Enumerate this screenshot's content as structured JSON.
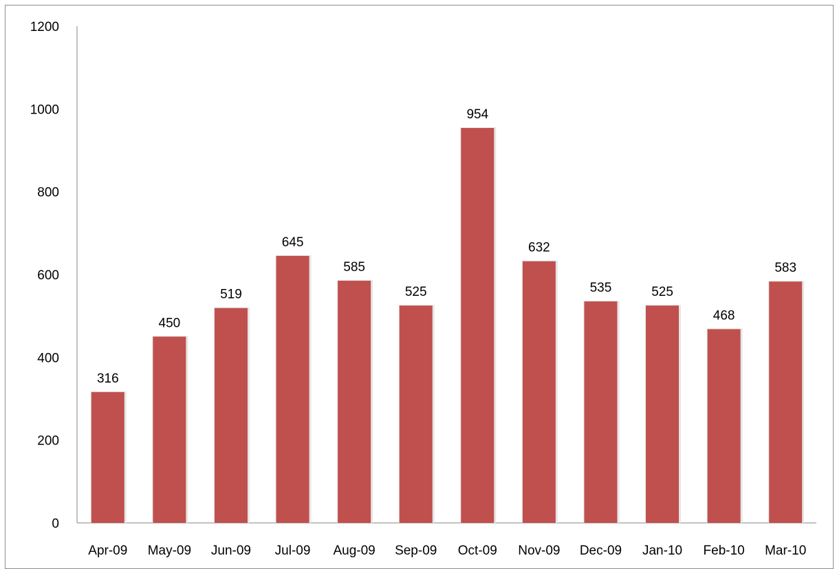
{
  "chart_data": {
    "type": "bar",
    "categories": [
      "Apr-09",
      "May-09",
      "Jun-09",
      "Jul-09",
      "Aug-09",
      "Sep-09",
      "Oct-09",
      "Nov-09",
      "Dec-09",
      "Jan-10",
      "Feb-10",
      "Mar-10"
    ],
    "series": [
      {
        "values": [
          316,
          450,
          519,
          645,
          585,
          525,
          954,
          632,
          535,
          525,
          468,
          583
        ],
        "color": "#c0504d"
      }
    ],
    "title": "",
    "xlabel": "",
    "ylabel": "",
    "ylim": [
      0,
      1200
    ],
    "yticks": [
      0,
      200,
      400,
      600,
      800,
      1000,
      1200
    ],
    "grid": false,
    "legend": "none",
    "data_labels": true
  }
}
